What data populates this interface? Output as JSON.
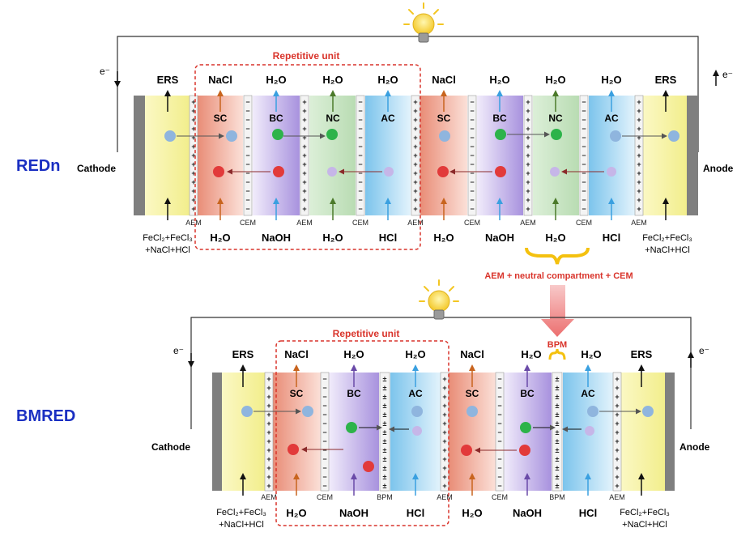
{
  "colors": {
    "sc": "#f0a08c",
    "bc": "#b9a6e6",
    "nc": "#cfe6cc",
    "ac": "#92cfef",
    "ers": "#f6f39c",
    "electrode": "#808080",
    "membrane": "#eeeeee",
    "repetitive": "#d9342b",
    "title_blue": "#1a2fc2",
    "arrow_orange": "#c8641e",
    "arrow_blue": "#3aa0e0",
    "arrow_green": "#4b7a2a",
    "arrow_purple": "#6a4aa8",
    "ion_cl": "#8fb5de",
    "ion_na": "#e23a3a",
    "ion_oh": "#2db34a",
    "ion_h": "#c6b6e8",
    "brace": "#f4c10f"
  },
  "redn": {
    "label": "REDn",
    "cathode": "Cathode",
    "anode": "Anode",
    "electron_left": "e⁻",
    "electron_right": "e⁻",
    "repetitive_unit": "Repetitive unit",
    "top_labels": [
      "ERS",
      "NaCl",
      "H₂O",
      "H₂O",
      "H₂O",
      "NaCl",
      "H₂O",
      "H₂O",
      "H₂O",
      "ERS"
    ],
    "bottom_labels": [
      "H₂O",
      "NaOH",
      "H₂O",
      "HCl",
      "H₂O",
      "NaOH",
      "H₂O",
      "HCl"
    ],
    "bottom_left_feed": [
      "FeCl₂+FeCl₃",
      "+NaCl+HCl"
    ],
    "bottom_right_feed": [
      "FeCl₂+FeCl₃",
      "+NaCl+HCl"
    ],
    "compartments": [
      "SC",
      "BC",
      "NC",
      "AC",
      "SC",
      "BC",
      "NC",
      "AC"
    ],
    "membranes": [
      "AEM",
      "CEM",
      "AEM",
      "CEM",
      "AEM",
      "CEM",
      "AEM",
      "CEM",
      "AEM"
    ],
    "ions": {
      "cl": "Cl⁻",
      "oh": "OH⁻",
      "na": "Na⁺",
      "h": "H⁺"
    }
  },
  "annotation": "AEM + neutral compartment + CEM",
  "bpm_callout": "BPM",
  "bmred": {
    "label": "BMRED",
    "cathode": "Cathode",
    "anode": "Anode",
    "electron_left": "e⁻",
    "electron_right": "e⁻",
    "repetitive_unit": "Repetitive unit",
    "top_labels": [
      "ERS",
      "NaCl",
      "H₂O",
      "H₂O",
      "NaCl",
      "H₂O",
      "H₂O",
      "ERS"
    ],
    "bottom_labels": [
      "H₂O",
      "NaOH",
      "HCl",
      "H₂O",
      "NaOH",
      "HCl"
    ],
    "bottom_left_feed": [
      "FeCl₂+FeCl₃",
      "+NaCl+HCl"
    ],
    "bottom_right_feed": [
      "FeCl₂+FeCl₃",
      "+NaCl+HCl"
    ],
    "compartments": [
      "SC",
      "BC",
      "AC",
      "SC",
      "BC",
      "AC"
    ],
    "membranes": [
      "AEM",
      "CEM",
      "BPM",
      "AEM",
      "CEM",
      "BPM",
      "AEM"
    ],
    "ions": {
      "cl": "Cl⁻",
      "oh": "OH⁻",
      "na": "Na⁺",
      "h": "H⁺"
    }
  }
}
